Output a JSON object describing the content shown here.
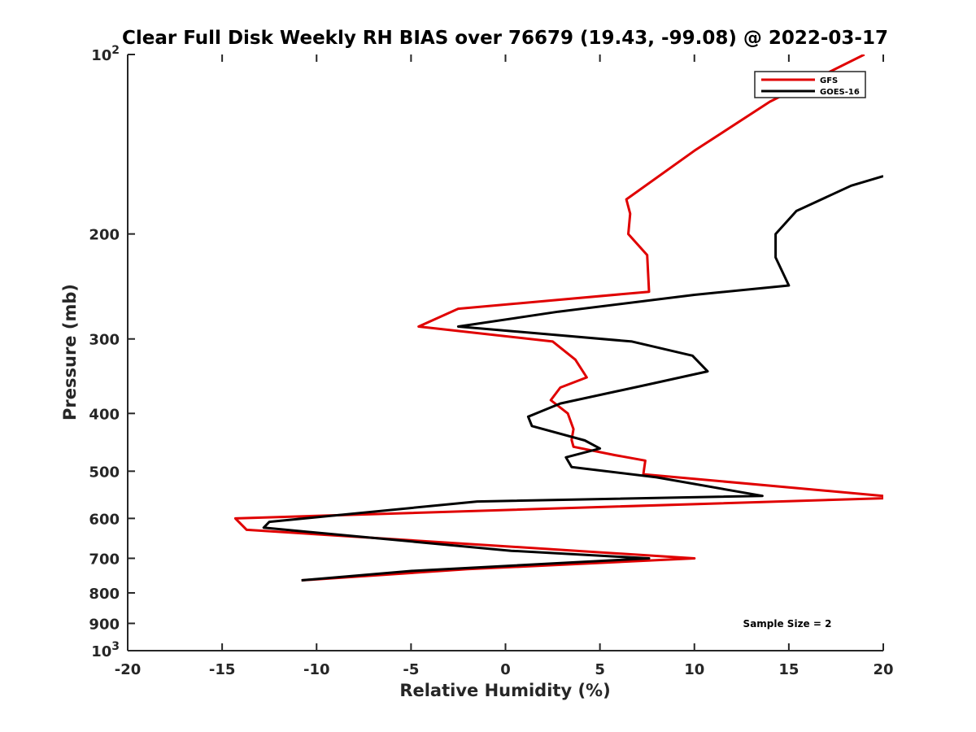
{
  "chart_data": {
    "type": "line",
    "title": "Clear Full Disk Weekly RH BIAS over 76679 (19.43, -99.08) @ 2022-03-17",
    "xlabel": "Relative Humidity (%)",
    "ylabel": "Pressure (mb)",
    "xlim": [
      -20,
      20
    ],
    "ylim": [
      100,
      1000
    ],
    "y_scale": "log",
    "y_reversed": true,
    "grid": false,
    "legend_position": "top-right",
    "x_ticks": [
      -20,
      -15,
      -10,
      -5,
      0,
      5,
      10,
      15,
      20
    ],
    "x_tick_labels": [
      "-20",
      "-15",
      "-10",
      "-5",
      "0",
      "5",
      "10",
      "15",
      "20"
    ],
    "y_ticks": [
      100,
      200,
      300,
      400,
      500,
      600,
      700,
      800,
      900,
      1000
    ],
    "y_tick_labels": [
      {
        "base": "10",
        "exp": "2"
      },
      {
        "base": "200"
      },
      {
        "base": "300"
      },
      {
        "base": "400"
      },
      {
        "base": "500"
      },
      {
        "base": "600"
      },
      {
        "base": "700"
      },
      {
        "base": "800"
      },
      {
        "base": "900"
      },
      {
        "base": "10",
        "exp": "3"
      }
    ],
    "series": [
      {
        "name": "GFS",
        "color": "#e00000",
        "points": [
          [
            19,
            100
          ],
          [
            14,
            120
          ],
          [
            10,
            145
          ],
          [
            6.4,
            175
          ],
          [
            6.6,
            185
          ],
          [
            6.5,
            200
          ],
          [
            7.5,
            217
          ],
          [
            7.6,
            250
          ],
          [
            -2.5,
            267
          ],
          [
            -4.6,
            286
          ],
          [
            2.5,
            303
          ],
          [
            3.7,
            325
          ],
          [
            4.3,
            348
          ],
          [
            2.9,
            362
          ],
          [
            2.4,
            380
          ],
          [
            3.3,
            400
          ],
          [
            3.6,
            425
          ],
          [
            3.5,
            443
          ],
          [
            3.6,
            455
          ],
          [
            5.8,
            470
          ],
          [
            7.4,
            480
          ],
          [
            7.3,
            506
          ],
          [
            20,
            550
          ],
          [
            20,
            555
          ],
          [
            -14.3,
            600
          ],
          [
            -13.7,
            627
          ],
          [
            10,
            700
          ],
          [
            -2,
            730
          ],
          [
            -10.8,
            762
          ]
        ]
      },
      {
        "name": "GOES-16",
        "color": "#000000",
        "points": [
          [
            20,
            160
          ],
          [
            18.3,
            166
          ],
          [
            15.4,
            183
          ],
          [
            14.3,
            200
          ],
          [
            14.3,
            219
          ],
          [
            15.0,
            244
          ],
          [
            10.0,
            253
          ],
          [
            2.8,
            270
          ],
          [
            -2.5,
            286
          ],
          [
            6.7,
            303
          ],
          [
            9.9,
            320
          ],
          [
            10.7,
            340
          ],
          [
            7.5,
            358
          ],
          [
            2.9,
            385
          ],
          [
            1.2,
            405
          ],
          [
            1.4,
            420
          ],
          [
            4.2,
            444
          ],
          [
            5.0,
            458
          ],
          [
            3.2,
            474
          ],
          [
            3.5,
            492
          ],
          [
            8.0,
            512
          ],
          [
            13.6,
            550
          ],
          [
            -1.5,
            562
          ],
          [
            -12.5,
            608
          ],
          [
            -12.8,
            622
          ],
          [
            0.3,
            680
          ],
          [
            7.6,
            700
          ],
          [
            -5,
            735
          ],
          [
            -10.8,
            762
          ]
        ]
      }
    ],
    "annotations": [
      "Sample Size = 2"
    ]
  }
}
